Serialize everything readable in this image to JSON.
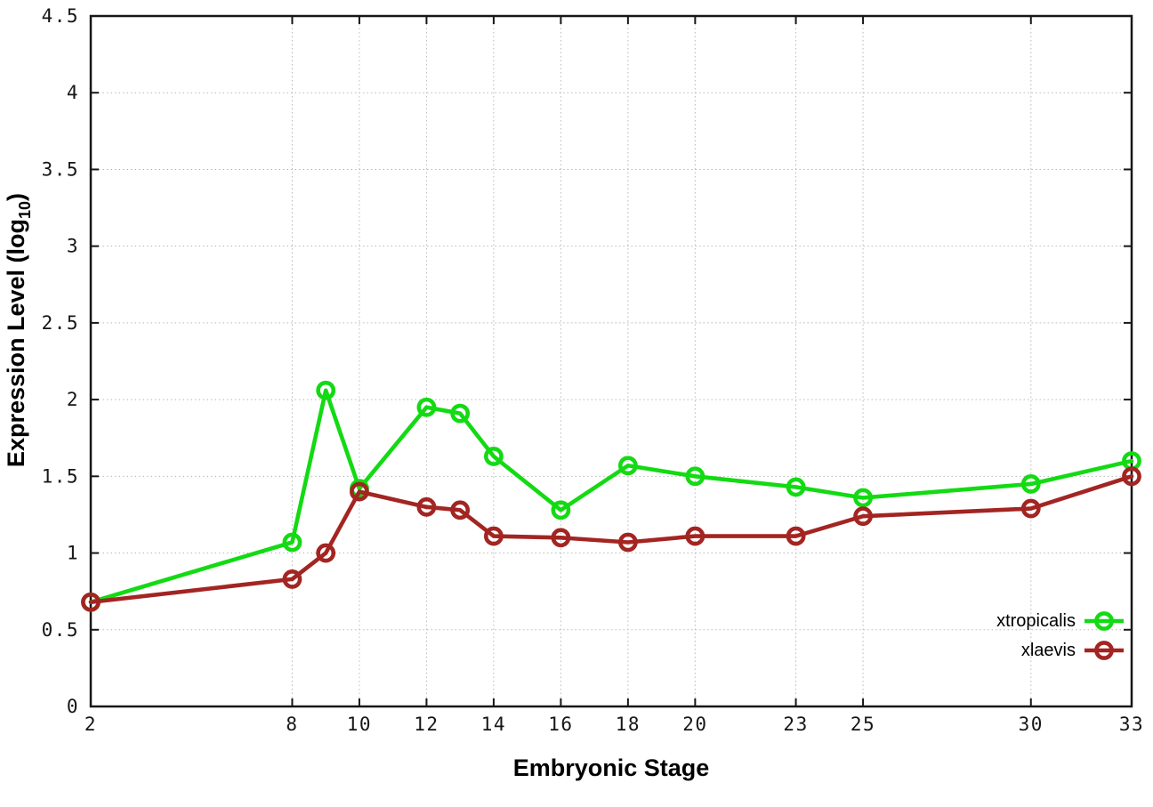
{
  "chart_data": {
    "type": "line",
    "title": "",
    "xlabel": "Embryonic Stage",
    "ylabel": "Expression Level (log10)",
    "ylabel_parts": {
      "pre": "Expression Level (log",
      "sub": "10",
      "post": ")"
    },
    "xlim": [
      2,
      33
    ],
    "ylim": [
      0,
      4.5
    ],
    "x_ticks": [
      2,
      8,
      10,
      12,
      14,
      16,
      18,
      20,
      23,
      25,
      30,
      33
    ],
    "y_ticks": [
      0,
      0.5,
      1,
      1.5,
      2,
      2.5,
      3,
      3.5,
      4,
      4.5
    ],
    "grid": true,
    "legend_position": "bottom-right",
    "marker": "open-circle",
    "x": [
      2,
      8,
      9,
      10,
      12,
      13,
      14,
      16,
      18,
      20,
      23,
      25,
      30,
      33
    ],
    "series": [
      {
        "name": "xtropicalis",
        "color": "#13da13",
        "values": [
          0.68,
          1.07,
          2.06,
          1.42,
          1.95,
          1.91,
          1.63,
          1.28,
          1.57,
          1.5,
          1.43,
          1.36,
          1.45,
          1.6
        ]
      },
      {
        "name": "xlaevis",
        "color": "#a32522",
        "values": [
          0.68,
          0.83,
          1.0,
          1.4,
          1.3,
          1.28,
          1.11,
          1.1,
          1.07,
          1.11,
          1.11,
          1.24,
          1.29,
          1.5
        ]
      }
    ]
  },
  "style": {
    "background": "#ffffff",
    "grid_color": "#b9b9b9",
    "axis_color": "#171717"
  }
}
